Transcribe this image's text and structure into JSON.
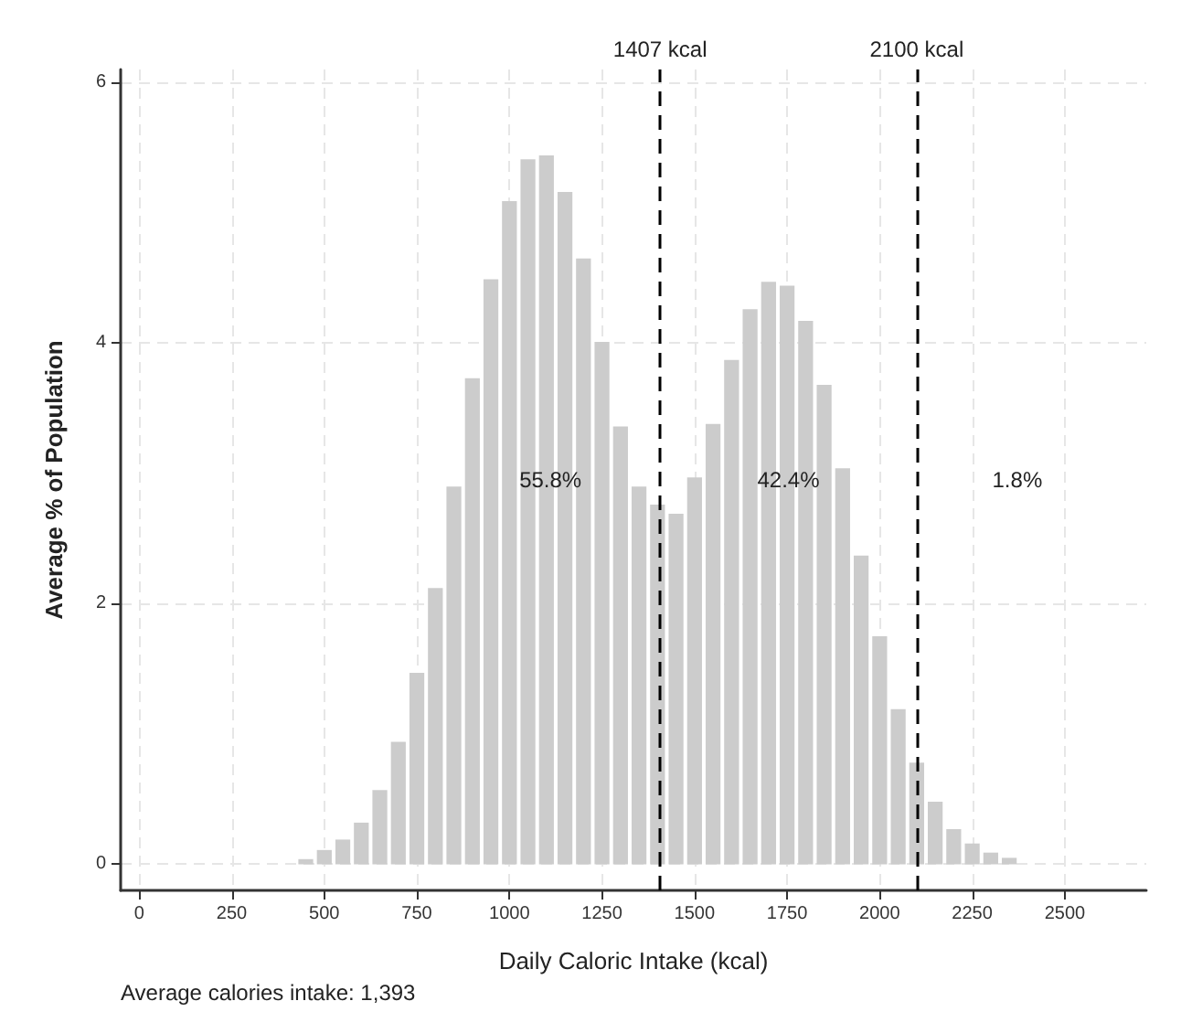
{
  "chart_data": {
    "type": "histogram",
    "xlabel": "Daily Caloric Intake (kcal)",
    "ylabel": "Average % of Population",
    "bins": [
      375,
      425,
      475,
      525,
      575,
      625,
      675,
      725,
      775,
      825,
      875,
      925,
      975,
      1025,
      1075,
      1125,
      1175,
      1225,
      1275,
      1325,
      1375,
      1425,
      1475,
      1525,
      1575,
      1625,
      1675,
      1725,
      1775,
      1825,
      1875,
      1925,
      1975,
      2025,
      2075,
      2125,
      2175,
      2225,
      2275,
      2325,
      2375,
      2425
    ],
    "values": [
      null,
      0.04,
      0.11,
      0.19,
      0.32,
      0.57,
      0.94,
      1.47,
      2.12,
      2.9,
      3.73,
      4.49,
      5.09,
      5.41,
      5.44,
      5.16,
      4.65,
      4.01,
      3.36,
      2.9,
      2.76,
      2.69,
      2.97,
      3.38,
      3.87,
      4.26,
      4.47,
      4.44,
      4.17,
      3.68,
      3.04,
      2.37,
      1.75,
      1.19,
      0.78,
      0.48,
      0.27,
      0.16,
      0.09,
      0.05,
      null
    ],
    "color": "#cccccc",
    "xlim": [
      -50,
      2720
    ],
    "xticks": [
      0,
      250,
      500,
      750,
      1000,
      1250,
      1500,
      1750,
      2000,
      2250,
      2500
    ],
    "ylim": [
      -0.2,
      6.1
    ],
    "yticks": [
      0,
      2,
      4,
      6
    ],
    "grid": true,
    "ref_lines": [
      {
        "axis": "x",
        "value": 1407,
        "label": "1407 kcal",
        "color": "#000000",
        "line_style": "dashed"
      },
      {
        "axis": "x",
        "value": 2100,
        "label": "2100 kcal",
        "color": "#000000",
        "line_style": "dashed"
      }
    ],
    "annotations": [
      "55.8%",
      "42.4%",
      "1.8%",
      "Average calories intake: 1,393"
    ]
  }
}
